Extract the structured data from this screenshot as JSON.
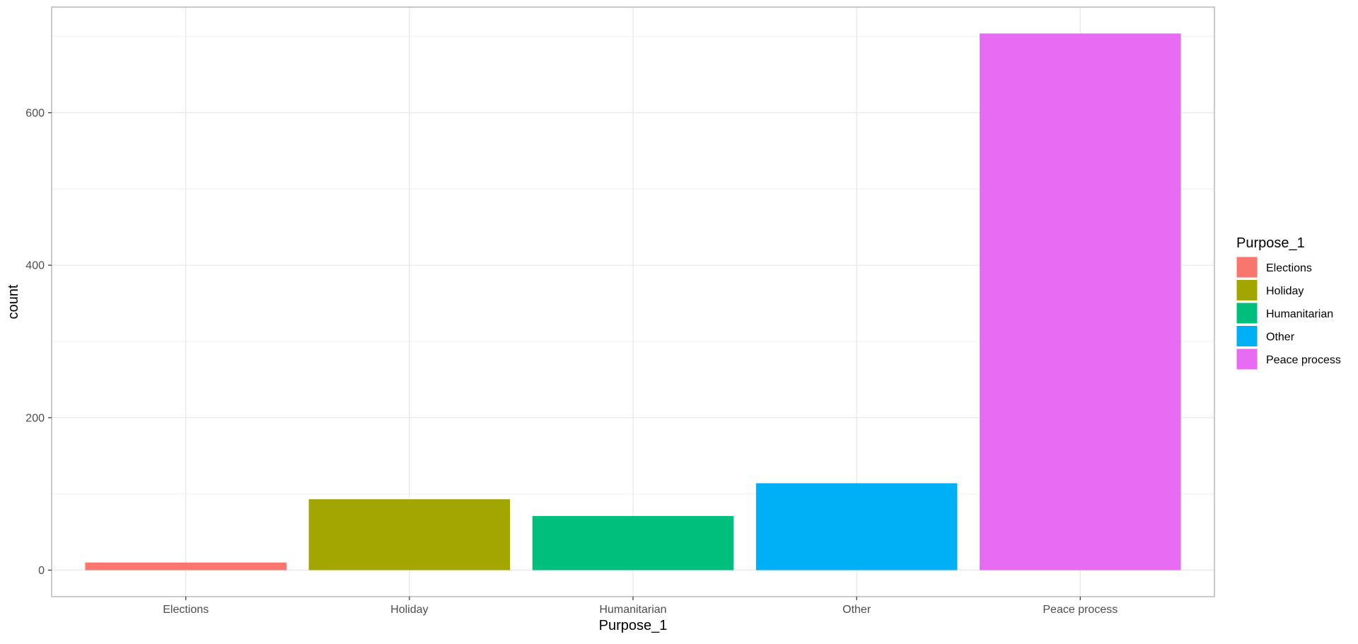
{
  "chart_data": {
    "type": "bar",
    "title": "",
    "xlabel": "Purpose_1",
    "ylabel": "count",
    "categories": [
      "Elections",
      "Holiday",
      "Humanitarian",
      "Other",
      "Peace process"
    ],
    "values": [
      10,
      93,
      71,
      114,
      704
    ],
    "colors": [
      "#F8766D",
      "#A3A500",
      "#00BF7D",
      "#00B0F6",
      "#E76BF3"
    ],
    "ylim": [
      -35,
      740
    ],
    "yticks": [
      0,
      200,
      400,
      600
    ],
    "grid": true,
    "legend": {
      "title": "Purpose_1",
      "position": "right",
      "entries": [
        "Elections",
        "Holiday",
        "Humanitarian",
        "Other",
        "Peace process"
      ]
    }
  }
}
